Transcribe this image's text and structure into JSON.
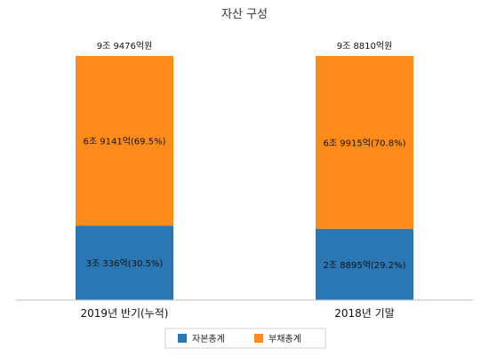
{
  "chart_data": {
    "type": "bar",
    "stacked": true,
    "title": "자산 구성",
    "categories": [
      "2019년 반기(누적)",
      "2018년 기말"
    ],
    "totals": [
      "9조 9476억원",
      "9조 8810억원"
    ],
    "series": [
      {
        "name": "자본총계",
        "color": "#2b77b4",
        "values": [
          30.5,
          29.2
        ],
        "labels": [
          "3조 336억(30.5%)",
          "2조 8895억(29.2%)"
        ]
      },
      {
        "name": "부채총계",
        "color": "#ff8c1a",
        "values": [
          69.5,
          70.8
        ],
        "labels": [
          "6조 9141억(69.5%)",
          "6조 9915억(70.8%)"
        ]
      }
    ],
    "legend_position": "bottom",
    "grid": false
  }
}
